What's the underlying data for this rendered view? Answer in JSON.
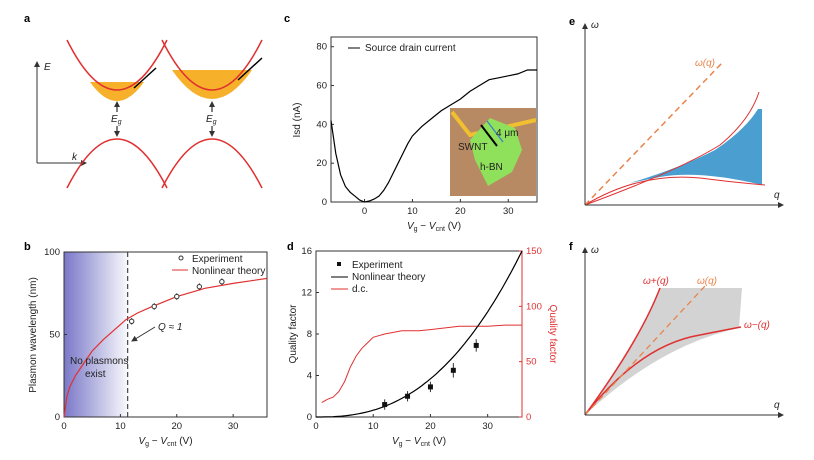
{
  "panels": {
    "a": "a",
    "b": "b",
    "c": "c",
    "d": "d",
    "e": "e",
    "f": "f"
  },
  "a": {
    "y_axis": "E",
    "x_axis": "k",
    "gap_label": "E",
    "gap_sub": "g"
  },
  "chart_data": [
    {
      "panel": "c",
      "type": "line",
      "xlabel": "Vg − Vcnt (V)",
      "ylabel": "Isd (nA)",
      "xlim": [
        -7,
        36
      ],
      "ylim": [
        0,
        85
      ],
      "xticks": [
        0,
        10,
        20,
        30
      ],
      "yticks": [
        0,
        20,
        40,
        60,
        80
      ],
      "series": [
        {
          "name": "Source drain current",
          "color": "#000000",
          "x": [
            -7,
            -6,
            -5,
            -4,
            -3,
            -2,
            -1,
            0,
            1,
            2,
            3,
            4,
            5,
            6,
            7,
            8,
            9,
            10,
            12,
            14,
            16,
            18,
            20,
            22,
            24,
            26,
            28,
            30,
            32,
            34,
            36
          ],
          "y": [
            42,
            25,
            14,
            8,
            5,
            3,
            1,
            0,
            0.5,
            1.5,
            3,
            6,
            10,
            15,
            20,
            25,
            30,
            34,
            39,
            43,
            47,
            50,
            53,
            57,
            60,
            63,
            64,
            65,
            66,
            68,
            68
          ]
        }
      ],
      "inset": {
        "labels": [
          "SWNT",
          "4 μm",
          "h-BN"
        ]
      }
    },
    {
      "panel": "b",
      "type": "line",
      "xlabel": "Vg − Vcnt (V)",
      "ylabel": "Plasmon wavelength (nm)",
      "xlim": [
        0,
        36
      ],
      "ylim": [
        0,
        100
      ],
      "xticks": [
        0,
        10,
        20,
        30
      ],
      "yticks": [
        0,
        50,
        100
      ],
      "series": [
        {
          "name": "Experiment",
          "marker": "open-circle",
          "x": [
            12,
            16,
            20,
            24,
            28
          ],
          "y": [
            58,
            67,
            73,
            79,
            82
          ],
          "err": [
            2,
            2,
            2,
            2,
            2
          ]
        },
        {
          "name": "Nonlinear theory",
          "color": "#e03030",
          "x": [
            0,
            0.5,
            1,
            2,
            3,
            5,
            7,
            10,
            11,
            13,
            15,
            20,
            25,
            30,
            36
          ],
          "y": [
            0,
            12,
            18,
            25,
            30,
            40,
            47,
            56,
            59,
            63,
            66,
            73,
            78,
            81,
            84
          ]
        }
      ],
      "annotations": {
        "threshold_x": 11.3,
        "q_label": "Q ≈ 1",
        "region_line1": "No plasmons",
        "region_line2": "exist"
      }
    },
    {
      "panel": "d",
      "type": "line",
      "xlabel": "Vg − Vcnt (V)",
      "ylabel": "Quality factor",
      "y2label": "Quality factor",
      "xlim": [
        0,
        36
      ],
      "ylim": [
        0,
        16
      ],
      "y2lim": [
        0,
        150
      ],
      "xticks": [
        0,
        10,
        20,
        30
      ],
      "yticks": [
        0,
        4,
        8,
        12,
        16
      ],
      "y2ticks": [
        0,
        50,
        100,
        150
      ],
      "series": [
        {
          "name": "Experiment",
          "marker": "filled-square",
          "x": [
            12,
            16,
            20,
            24,
            28
          ],
          "y": [
            1.2,
            2.0,
            2.9,
            4.5,
            6.9
          ],
          "err": [
            0.5,
            0.5,
            0.5,
            0.7,
            0.6
          ]
        },
        {
          "name": "Nonlinear theory",
          "color": "#000000",
          "formula_exponent": 2.5,
          "y_at_36": 16
        },
        {
          "name": "d.c.",
          "color": "#e03030",
          "axis": "right",
          "x": [
            1,
            2,
            3,
            4,
            5,
            6,
            7,
            8,
            9,
            10,
            12,
            15,
            18,
            20,
            25,
            30,
            33,
            36
          ],
          "y": [
            13,
            16,
            18,
            23,
            32,
            45,
            55,
            62,
            67,
            72,
            75,
            78,
            78,
            79,
            82,
            82,
            83,
            83
          ]
        }
      ]
    },
    {
      "panel": "e",
      "type": "diagram",
      "xlabel": "q",
      "ylabel": "ω",
      "curve_label": "ω(q)"
    },
    {
      "panel": "f",
      "type": "diagram",
      "xlabel": "q",
      "ylabel": "ω",
      "curve_labels": [
        "ω+(q)",
        "ω(q)",
        "ω−(q)"
      ]
    }
  ],
  "colors": {
    "red": "#e03030",
    "orange": "#e8844a",
    "blue": "#4a9fd0",
    "gray": "#d3d3d3",
    "band_fill": "#f6b02a",
    "region": "#7a78c8"
  }
}
